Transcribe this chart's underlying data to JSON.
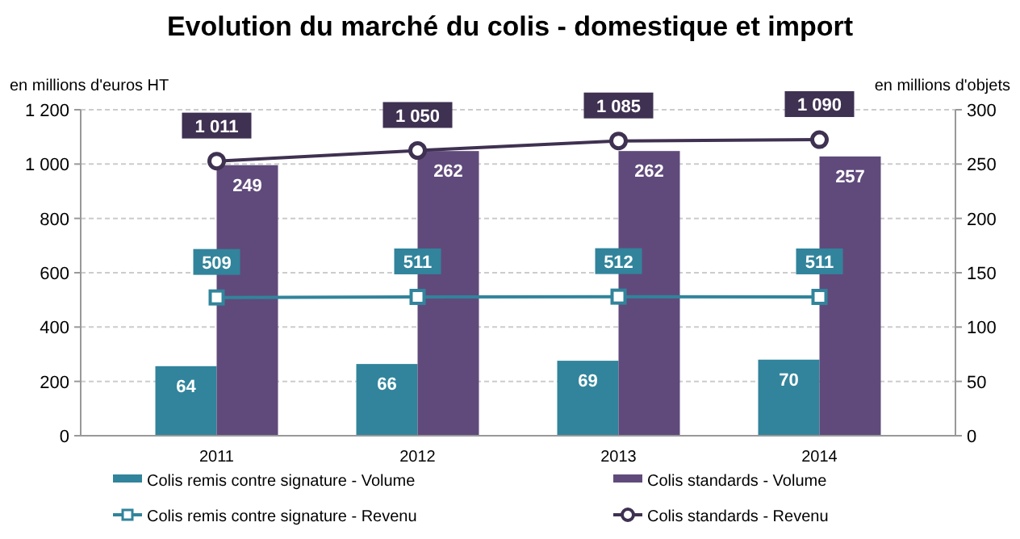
{
  "chart_data": {
    "type": "bar",
    "title": "Evolution du marché du colis - domestique et import",
    "ylabel": "en millions d'euros HT",
    "y2label": "en millions d'objets",
    "categories": [
      "2011",
      "2012",
      "2013",
      "2014"
    ],
    "series": [
      {
        "name": "Colis remis contre signature - Volume",
        "axis": "y2",
        "color": "#31849b",
        "values": [
          64,
          66,
          69,
          70
        ],
        "value_labels": [
          "64",
          "66",
          "69",
          "70"
        ]
      },
      {
        "name": "Colis standards - Volume",
        "axis": "y2",
        "color": "#604a7b",
        "values": [
          249,
          262,
          262,
          257
        ],
        "value_labels": [
          "249",
          "262",
          "262",
          "257"
        ]
      },
      {
        "name": "Colis remis contre signature - Revenu",
        "type": "line",
        "axis": "y",
        "marker": "square",
        "color": "#31849b",
        "values": [
          509,
          511,
          512,
          511
        ],
        "value_labels": [
          "509",
          "511",
          "512",
          "511"
        ]
      },
      {
        "name": "Colis standards - Revenu",
        "type": "line",
        "axis": "y",
        "marker": "circle",
        "color": "#3f3151",
        "values": [
          1011,
          1050,
          1085,
          1090
        ],
        "value_labels": [
          "1 011",
          "1 050",
          "1 085",
          "1 090"
        ]
      }
    ],
    "ylim": [
      0,
      1200
    ],
    "yticks": [
      0,
      200,
      400,
      600,
      800,
      {
        "value": 1000,
        "label": "1 000"
      },
      {
        "value": 1200,
        "label": "1 200"
      }
    ],
    "y2lim": [
      0,
      300
    ],
    "y2ticks": [
      0,
      50,
      100,
      150,
      200,
      250,
      300
    ],
    "grid": "y",
    "legend": "bottom"
  }
}
